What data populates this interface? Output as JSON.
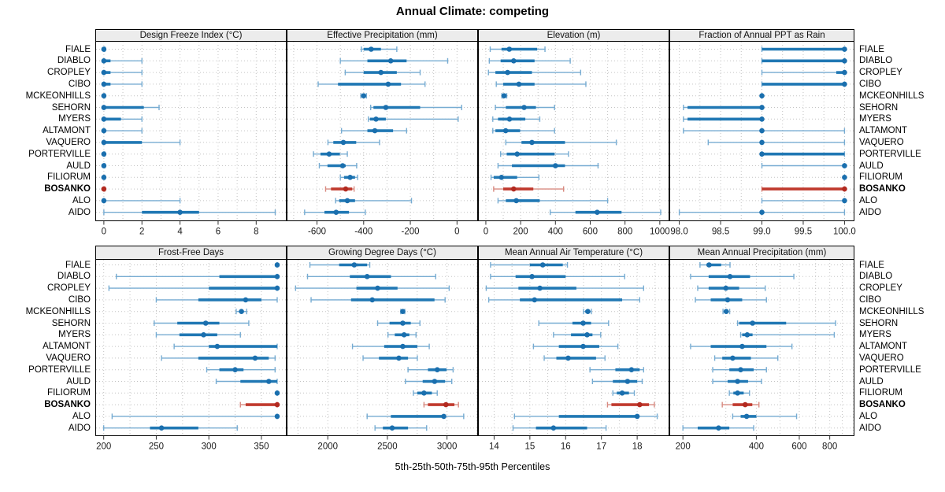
{
  "title": "Annual Climate: competing",
  "x_axis_title": "5th-25th-50th-75th-95th Percentiles",
  "colors": {
    "blue_dot": "#1a6fae",
    "blue_thick": "#2078b4",
    "blue_thin": "#77acd2",
    "red_dot": "#b22a20",
    "red_thick": "#c03a2e",
    "red_thin": "#d88a80",
    "strip_bg": "#ececec",
    "grid": "#c3c3c3",
    "panel_border": "#000000"
  },
  "sites": [
    "FIALE",
    "DIABLO",
    "CROPLEY",
    "CIBO",
    "MCKEONHILLS",
    "SEHORN",
    "MYERS",
    "ALTAMONT",
    "VAQUERO",
    "PORTERVILLE",
    "AULD",
    "FILIORUM",
    "BOSANKO",
    "ALO",
    "AIDO"
  ],
  "chart_data": {
    "type": "dotplot-percentile-whiskers",
    "percentiles": [
      5,
      25,
      50,
      75,
      95
    ],
    "highlight_site": "BOSANKO",
    "legend_note": "5th-25th-50th-75th-95th Percentiles",
    "panels": [
      {
        "title": "Design Freeze Index (°C)",
        "scale": "linear",
        "range": [
          -0.45,
          9.6
        ],
        "ticks": [
          0,
          2,
          4,
          6,
          8
        ],
        "tick_labels": [
          "0",
          "2",
          "4",
          "6",
          "8"
        ],
        "grid": [
          0,
          1,
          2,
          3,
          4,
          5,
          6,
          7,
          8,
          9
        ],
        "values": {
          "FIALE": [
            0,
            0,
            0,
            0,
            0.05
          ],
          "DIABLO": [
            0,
            0,
            0,
            0.35,
            2
          ],
          "CROPLEY": [
            0,
            0,
            0,
            0.35,
            2
          ],
          "CIBO": [
            0,
            0,
            0,
            0.35,
            2
          ],
          "MCKEONHILLS": [
            0,
            0,
            0,
            0,
            0.05
          ],
          "SEHORN": [
            0,
            0,
            0,
            2.1,
            2.9
          ],
          "MYERS": [
            0,
            0,
            0,
            0.9,
            2
          ],
          "ALTAMONT": [
            0,
            0,
            0,
            0.1,
            2
          ],
          "VAQUERO": [
            0,
            0,
            0,
            2,
            4
          ],
          "PORTERVILLE": [
            0,
            0,
            0,
            0,
            0.05
          ],
          "AULD": [
            0,
            0,
            0,
            0,
            0.05
          ],
          "FILIORUM": [
            0,
            0,
            0,
            0,
            0.05
          ],
          "BOSANKO": [
            0,
            0,
            0,
            0,
            0.05
          ],
          "ALO": [
            0,
            0,
            0,
            0.05,
            4
          ],
          "AIDO": [
            0,
            2,
            4,
            5,
            9
          ]
        }
      },
      {
        "title": "Effective Precipitation (mm)",
        "scale": "linear",
        "range": [
          -730,
          90
        ],
        "ticks": [
          -600,
          -400,
          -200,
          0
        ],
        "tick_labels": [
          "-600",
          "-400",
          "-200",
          "0"
        ],
        "grid": [
          -700,
          -600,
          -500,
          -400,
          -300,
          -200,
          -100,
          0
        ],
        "values": {
          "FIALE": [
            -410,
            -400,
            -368,
            -326,
            -258
          ],
          "DIABLO": [
            -500,
            -384,
            -284,
            -216,
            -40
          ],
          "CROPLEY": [
            -479,
            -400,
            -326,
            -258,
            -158
          ],
          "CIBO": [
            -595,
            -510,
            -295,
            -240,
            -137
          ],
          "MCKEONHILLS": [
            -412,
            -406,
            -400,
            -394,
            -388
          ],
          "SEHORN": [
            -370,
            -358,
            -305,
            -158,
            20
          ],
          "MYERS": [
            -380,
            -373,
            -347,
            -305,
            5
          ],
          "ALTAMONT": [
            -495,
            -384,
            -352,
            -274,
            -216
          ],
          "VAQUERO": [
            -553,
            -530,
            -487,
            -432,
            -332
          ],
          "PORTERVILLE": [
            -615,
            -585,
            -548,
            -502,
            -470
          ],
          "AULD": [
            -590,
            -555,
            -490,
            -477,
            -430
          ],
          "FILIORUM": [
            -500,
            -484,
            -458,
            -437,
            -426
          ],
          "BOSANKO": [
            -563,
            -540,
            -477,
            -449,
            -441
          ],
          "ALO": [
            -520,
            -505,
            -470,
            -437,
            -195
          ],
          "AIDO": [
            -653,
            -568,
            -518,
            -463,
            -393
          ]
        }
      },
      {
        "title": "Elevation (m)",
        "scale": "linear",
        "range": [
          -45,
          1055
        ],
        "ticks": [
          0,
          200,
          400,
          600,
          800,
          1000
        ],
        "tick_labels": [
          "0",
          "200",
          "400",
          "600",
          "800",
          "1000"
        ],
        "grid": [
          0,
          100,
          200,
          300,
          400,
          500,
          600,
          700,
          800,
          900,
          1000
        ],
        "values": {
          "FIALE": [
            25,
            90,
            135,
            295,
            340
          ],
          "DIABLO": [
            20,
            85,
            160,
            280,
            485
          ],
          "CROPLEY": [
            15,
            55,
            125,
            265,
            545
          ],
          "CIBO": [
            60,
            100,
            190,
            280,
            575
          ],
          "MCKEONHILLS": [
            92,
            98,
            105,
            112,
            120
          ],
          "SEHORN": [
            55,
            115,
            220,
            288,
            395
          ],
          "MYERS": [
            40,
            70,
            136,
            227,
            310
          ],
          "ALTAMONT": [
            40,
            55,
            114,
            197,
            395
          ],
          "VAQUERO": [
            115,
            205,
            265,
            455,
            750
          ],
          "PORTERVILLE": [
            85,
            120,
            180,
            395,
            475
          ],
          "AULD": [
            70,
            150,
            400,
            455,
            645
          ],
          "FILIORUM": [
            30,
            45,
            90,
            180,
            305
          ],
          "BOSANKO": [
            45,
            100,
            160,
            273,
            447
          ],
          "ALO": [
            70,
            115,
            175,
            310,
            700
          ],
          "AIDO": [
            370,
            515,
            640,
            780,
            1005
          ]
        }
      },
      {
        "title": "Fraction of Annual PPT as Rain",
        "scale": "linear",
        "range": [
          97.88,
          100.12
        ],
        "ticks": [
          98.0,
          98.5,
          99.0,
          99.5,
          100.0
        ],
        "tick_labels": [
          "98.0",
          "98.5",
          "99.0",
          "99.5",
          "100.0"
        ],
        "grid": [
          98.0,
          98.25,
          98.5,
          98.75,
          99.0,
          99.25,
          99.5,
          99.75,
          100.0
        ],
        "values": {
          "FIALE": [
            99,
            99,
            100,
            100,
            100
          ],
          "DIABLO": [
            99,
            99,
            100,
            100,
            100
          ],
          "CROPLEY": [
            99,
            99.9,
            100,
            100,
            100
          ],
          "CIBO": [
            99,
            99,
            100,
            100,
            100
          ],
          "MCKEONHILLS": [
            99,
            99,
            99,
            99,
            99
          ],
          "SEHORN": [
            98.05,
            98.1,
            99,
            99,
            99
          ],
          "MYERS": [
            98.05,
            98.1,
            99,
            99,
            99
          ],
          "ALTAMONT": [
            98.05,
            99,
            99,
            99,
            100
          ],
          "VAQUERO": [
            98.35,
            99,
            99,
            99,
            100
          ],
          "PORTERVILLE": [
            99,
            99,
            99,
            100,
            100
          ],
          "AULD": [
            99,
            100,
            100,
            100,
            100
          ],
          "FILIORUM": [
            100,
            100,
            100,
            100,
            100
          ],
          "BOSANKO": [
            99,
            99,
            100,
            100,
            100
          ],
          "ALO": [
            99,
            100,
            100,
            100,
            100
          ],
          "AIDO": [
            98,
            99,
            99,
            99,
            100
          ]
        }
      },
      {
        "title": "Frost-Free Days",
        "scale": "linear",
        "range": [
          192,
          374
        ],
        "ticks": [
          200,
          250,
          300,
          350
        ],
        "tick_labels": [
          "200",
          "250",
          "300",
          "350"
        ],
        "grid": [
          200,
          225,
          250,
          275,
          300,
          325,
          350
        ],
        "values": {
          "FIALE": [
            365,
            365,
            365,
            365,
            365
          ],
          "DIABLO": [
            212,
            310,
            365,
            365,
            365
          ],
          "CROPLEY": [
            205,
            300,
            365,
            365,
            365
          ],
          "CIBO": [
            250,
            290,
            335,
            350,
            365
          ],
          "MCKEONHILLS": [
            326,
            329,
            331,
            333,
            336
          ],
          "SEHORN": [
            248,
            270,
            297,
            310,
            338
          ],
          "MYERS": [
            250,
            272,
            295,
            308,
            330
          ],
          "ALTAMONT": [
            267,
            300,
            308,
            365,
            365
          ],
          "VAQUERO": [
            255,
            290,
            344,
            357,
            363
          ],
          "PORTERVILLE": [
            298,
            310,
            325,
            333,
            363
          ],
          "AULD": [
            307,
            330,
            357,
            365,
            365
          ],
          "FILIORUM": [
            365,
            365,
            365,
            365,
            365
          ],
          "BOSANKO": [
            330,
            335,
            365,
            365,
            365
          ],
          "ALO": [
            208,
            365,
            365,
            365,
            365
          ],
          "AIDO": [
            200,
            244,
            255,
            290,
            327
          ]
        }
      },
      {
        "title": "Growing Degree Days (°C)",
        "scale": "linear",
        "range": [
          1655,
          3260
        ],
        "ticks": [
          2000,
          2500,
          3000
        ],
        "tick_labels": [
          "2000",
          "2500",
          "3000"
        ],
        "grid": [
          1750,
          2000,
          2250,
          2500,
          2750,
          3000,
          3250
        ],
        "values": {
          "FIALE": [
            1850,
            2095,
            2222,
            2330,
            2352
          ],
          "DIABLO": [
            1830,
            2185,
            2330,
            2530,
            2905
          ],
          "CROPLEY": [
            1730,
            2240,
            2418,
            2585,
            3018
          ],
          "CIBO": [
            1860,
            2195,
            2373,
            2895,
            2984
          ],
          "MCKEONHILLS": [
            2612,
            2620,
            2629,
            2638,
            2646
          ],
          "SEHORN": [
            2418,
            2518,
            2629,
            2696,
            2773
          ],
          "MYERS": [
            2505,
            2562,
            2640,
            2684,
            2740
          ],
          "ALTAMONT": [
            2207,
            2473,
            2629,
            2751,
            2851
          ],
          "VAQUERO": [
            2296,
            2429,
            2596,
            2673,
            2751
          ],
          "PORTERVILLE": [
            2673,
            2840,
            2918,
            2996,
            3051
          ],
          "AULD": [
            2651,
            2796,
            2896,
            2984,
            3040
          ],
          "FILIORUM": [
            2718,
            2751,
            2807,
            2873,
            2918
          ],
          "BOSANKO": [
            2807,
            2840,
            2991,
            3062,
            3096
          ],
          "ALO": [
            2330,
            2529,
            2973,
            2990,
            3140
          ],
          "AIDO": [
            2396,
            2462,
            2540,
            2673,
            2829
          ]
        }
      },
      {
        "title": "Mean Annual Air Temperature (°C)",
        "scale": "linear",
        "range": [
          13.55,
          18.9
        ],
        "ticks": [
          14,
          15,
          16,
          17,
          18
        ],
        "tick_labels": [
          "14",
          "15",
          "16",
          "17",
          "18"
        ],
        "grid": [
          14,
          14.5,
          15,
          15.5,
          16,
          16.5,
          17,
          17.5,
          18,
          18.5
        ],
        "values": {
          "FIALE": [
            13.9,
            15.0,
            15.36,
            15.92,
            16.05
          ],
          "DIABLO": [
            13.9,
            14.6,
            15.06,
            16.0,
            17.65
          ],
          "CROPLEY": [
            13.78,
            14.68,
            15.28,
            16.3,
            18.18
          ],
          "CIBO": [
            13.85,
            14.72,
            15.13,
            17.58,
            18.07
          ],
          "MCKEONHILLS": [
            16.5,
            16.55,
            16.62,
            16.68,
            16.72
          ],
          "SEHORN": [
            15.25,
            16.19,
            16.49,
            16.71,
            17.2
          ],
          "MYERS": [
            15.66,
            16.15,
            16.6,
            16.75,
            16.98
          ],
          "ALTAMONT": [
            15.1,
            15.81,
            16.49,
            16.94,
            17.46
          ],
          "VAQUERO": [
            15.4,
            15.74,
            16.07,
            16.85,
            17.1
          ],
          "PORTERVILLE": [
            16.68,
            17.39,
            17.84,
            18.07,
            18.18
          ],
          "AULD": [
            16.75,
            17.32,
            17.73,
            18.0,
            18.14
          ],
          "FILIORUM": [
            17.32,
            17.43,
            17.58,
            17.77,
            17.92
          ],
          "BOSANKO": [
            17.17,
            17.28,
            18.07,
            18.33,
            18.48
          ],
          "ALO": [
            14.57,
            15.81,
            18.0,
            18.03,
            18.56
          ],
          "AIDO": [
            14.53,
            15.17,
            15.66,
            16.6,
            17.13
          ]
        }
      },
      {
        "title": "Mean Annual Precipitation (mm)",
        "scale": "log",
        "range": [
          176,
          1010
        ],
        "ticks": [
          200,
          400,
          600,
          800
        ],
        "tick_labels": [
          "200",
          "400",
          "600",
          "800"
        ],
        "grid": [
          200,
          300,
          400,
          500,
          600,
          700,
          800,
          900,
          1000
        ],
        "values": {
          "FIALE": [
            235,
            250,
            256,
            287,
            312
          ],
          "DIABLO": [
            215,
            255,
            312,
            377,
            570
          ],
          "CROPLEY": [
            230,
            255,
            300,
            340,
            435
          ],
          "CIBO": [
            225,
            260,
            305,
            350,
            440
          ],
          "MCKEONHILLS": [
            292,
            297,
            301,
            306,
            311
          ],
          "SEHORN": [
            335,
            340,
            386,
            530,
            845
          ],
          "MYERS": [
            345,
            350,
            367,
            386,
            835
          ],
          "ALTAMONT": [
            215,
            260,
            350,
            440,
            560
          ],
          "VAQUERO": [
            270,
            290,
            320,
            380,
            490
          ],
          "PORTERVILLE": [
            265,
            310,
            345,
            390,
            440
          ],
          "AULD": [
            265,
            305,
            335,
            370,
            420
          ],
          "FILIORUM": [
            310,
            322,
            335,
            355,
            375
          ],
          "BOSANKO": [
            290,
            320,
            360,
            385,
            410
          ],
          "ALO": [
            320,
            345,
            365,
            400,
            585
          ],
          "AIDO": [
            200,
            230,
            280,
            310,
            390
          ]
        }
      }
    ]
  }
}
